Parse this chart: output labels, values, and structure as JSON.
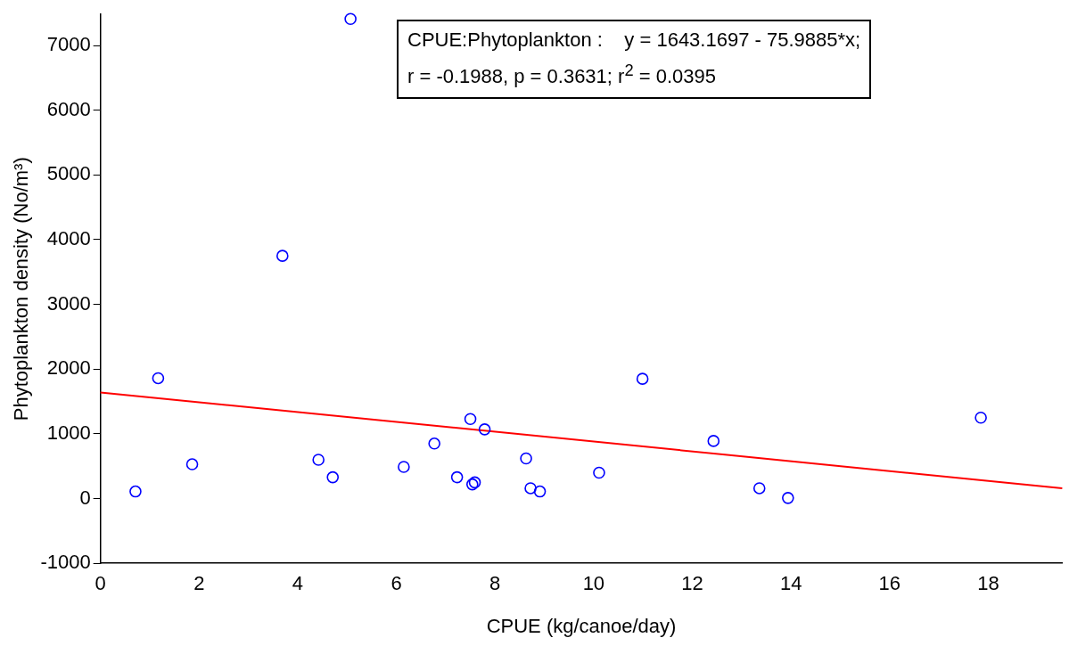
{
  "chart_data": {
    "type": "scatter",
    "xlabel": "CPUE (kg/canoe/day)",
    "ylabel": "Phytoplankton density (No/m³)",
    "annotations": [
      "CPUE:Phytoplankton :    y = 1643.1697 - 75.9885*x;",
      "r = -0.1988, p = 0.3631; r$^{2}$ = 0.0395"
    ],
    "xlim": [
      0,
      19.5
    ],
    "ylim": [
      -1000,
      7480
    ],
    "xticks": [
      0,
      2,
      4,
      6,
      8,
      10,
      12,
      14,
      16,
      18
    ],
    "yticks": [
      -1000,
      0,
      1000,
      2000,
      3000,
      4000,
      5000,
      6000,
      7000
    ],
    "grid": false,
    "legend": false,
    "marker": "circle",
    "series": [
      {
        "color": "#0000ff",
        "x": [
          0.71,
          1.17,
          1.86,
          3.69,
          4.42,
          4.71,
          5.07,
          6.15,
          6.77,
          7.23,
          7.5,
          7.54,
          7.59,
          7.79,
          8.63,
          8.72,
          8.91,
          10.11,
          10.99,
          12.43,
          13.36,
          13.94,
          17.85
        ],
        "values": [
          110,
          1860,
          530,
          3750,
          600,
          330,
          7410,
          490,
          850,
          330,
          1230,
          220,
          250,
          1070,
          620,
          160,
          110,
          400,
          1850,
          890,
          160,
          10,
          1250
        ]
      },
      {
        "type": "line",
        "color": "#ff0000",
        "line_style": "solid",
        "marker": "none",
        "x": [
          0,
          19.5
        ],
        "values": [
          1640,
          160
        ]
      }
    ]
  }
}
